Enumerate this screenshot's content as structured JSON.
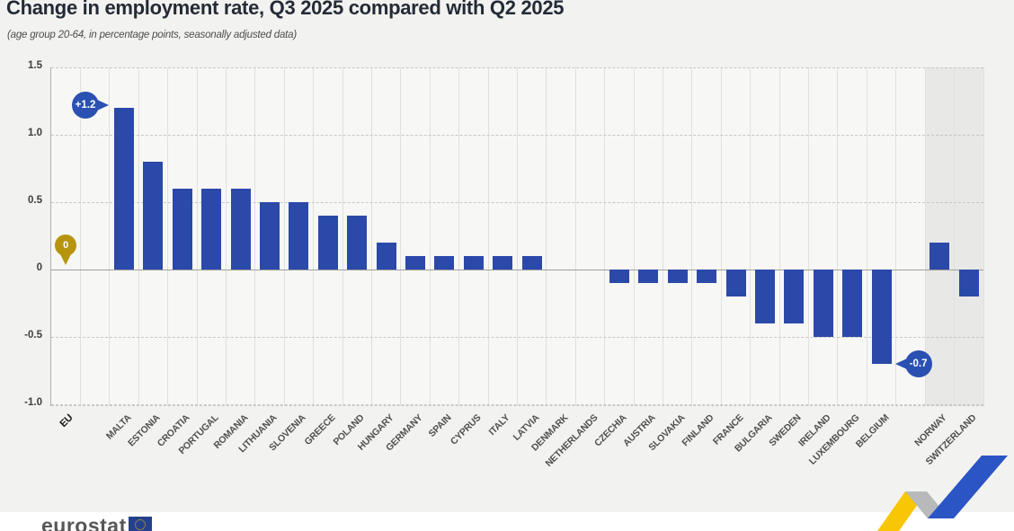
{
  "header": {
    "title": "Change in employment rate, Q3 2025 compared with Q2 2025",
    "subtitle": "(age group 20-64, in percentage points, seasonally adjusted data)"
  },
  "footer": {
    "logo_text": "eurostat",
    "flag_icon": "eu-flag-icon"
  },
  "colors": {
    "bar_blue": "#2b49a8",
    "badge_blue": "#2a50b2",
    "badge_gold": "#b6940e",
    "highlight_column_bg": "#e8e8e6",
    "zigzag_yellow": "#f9c606",
    "zigzag_gray": "#b7b9bb",
    "zigzag_blue": "#2b54c4"
  },
  "chart_data": {
    "type": "bar",
    "title": "Change in employment rate, Q3 2025 compared with Q2 2025",
    "unit_note": "(age group 20-64, in percentage points, seasonally adjusted data)",
    "xlabel": "",
    "ylabel": "percentage points",
    "ylim": [
      -1.0,
      1.5
    ],
    "grid": true,
    "legend": "none",
    "y_ticks": [
      "1.5",
      "1.0",
      "0.5",
      "0",
      "-0.5",
      "-1.0"
    ],
    "series": [
      {
        "name": "EU",
        "value": 0,
        "group": "eu"
      },
      {
        "name": "MALTA",
        "value": 1.2,
        "group": "member"
      },
      {
        "name": "ESTONIA",
        "value": 0.8,
        "group": "member"
      },
      {
        "name": "CROATIA",
        "value": 0.6,
        "group": "member"
      },
      {
        "name": "PORTUGAL",
        "value": 0.6,
        "group": "member"
      },
      {
        "name": "ROMANIA",
        "value": 0.6,
        "group": "member"
      },
      {
        "name": "LITHUANIA",
        "value": 0.5,
        "group": "member"
      },
      {
        "name": "SLOVENIA",
        "value": 0.5,
        "group": "member"
      },
      {
        "name": "GREECE",
        "value": 0.4,
        "group": "member"
      },
      {
        "name": "POLAND",
        "value": 0.4,
        "group": "member"
      },
      {
        "name": "HUNGARY",
        "value": 0.2,
        "group": "member"
      },
      {
        "name": "GERMANY",
        "value": 0.1,
        "group": "member"
      },
      {
        "name": "SPAIN",
        "value": 0.1,
        "group": "member"
      },
      {
        "name": "CYPRUS",
        "value": 0.1,
        "group": "member"
      },
      {
        "name": "ITALY",
        "value": 0.1,
        "group": "member"
      },
      {
        "name": "LATVIA",
        "value": 0.1,
        "group": "member"
      },
      {
        "name": "DENMARK",
        "value": 0,
        "group": "member"
      },
      {
        "name": "NETHERLANDS",
        "value": 0,
        "group": "member"
      },
      {
        "name": "CZECHIA",
        "value": -0.1,
        "group": "member"
      },
      {
        "name": "AUSTRIA",
        "value": -0.1,
        "group": "member"
      },
      {
        "name": "SLOVAKIA",
        "value": -0.1,
        "group": "member"
      },
      {
        "name": "FINLAND",
        "value": -0.1,
        "group": "member"
      },
      {
        "name": "FRANCE",
        "value": -0.2,
        "group": "member"
      },
      {
        "name": "BULGARIA",
        "value": -0.4,
        "group": "member"
      },
      {
        "name": "SWEDEN",
        "value": -0.4,
        "group": "member"
      },
      {
        "name": "IRELAND",
        "value": -0.5,
        "group": "member"
      },
      {
        "name": "LUXEMBOURG",
        "value": -0.5,
        "group": "member"
      },
      {
        "name": "BELGIUM",
        "value": -0.7,
        "group": "member"
      },
      {
        "name": "NORWAY",
        "value": 0.2,
        "group": "efta"
      },
      {
        "name": "SWITZERLAND",
        "value": -0.2,
        "group": "efta"
      }
    ],
    "highlighted_columns": [
      "NORWAY",
      "SWITZERLAND"
    ],
    "annotations": [
      {
        "country": "EU",
        "label": "0",
        "color": "gold",
        "tail": "down"
      },
      {
        "country": "MALTA",
        "label": "+1.2",
        "color": "blue",
        "tail": "right"
      },
      {
        "country": "BELGIUM",
        "label": "-0.7",
        "color": "blue",
        "tail": "left"
      }
    ]
  }
}
